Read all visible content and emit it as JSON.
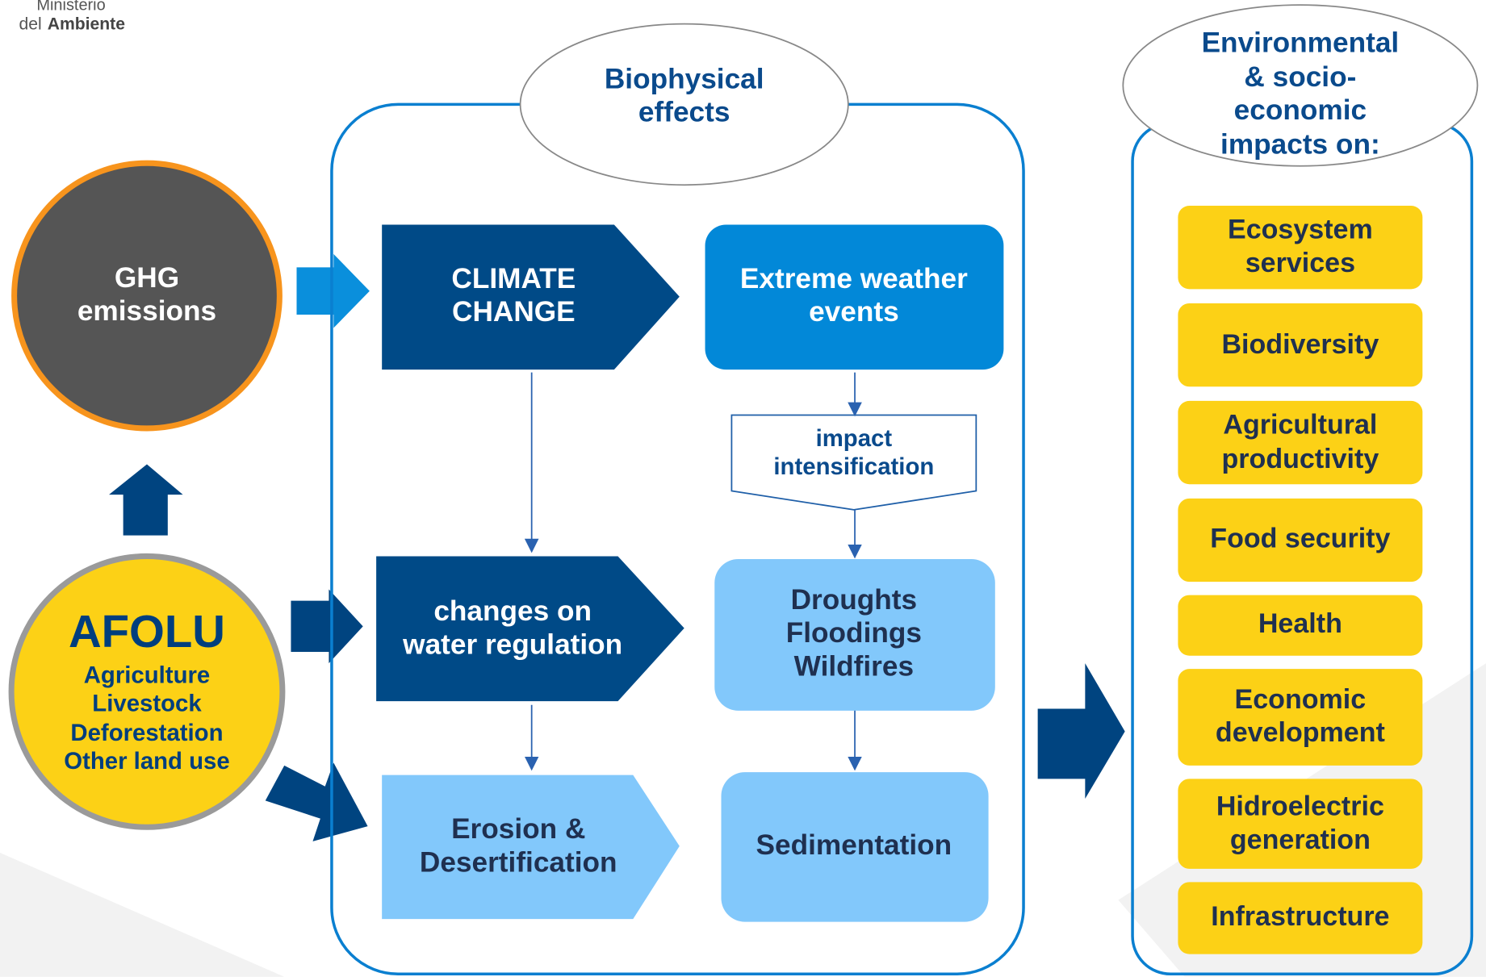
{
  "logo": {
    "line1": "Ministerio",
    "line2_prefix": "del",
    "line2_bold": "Ambiente"
  },
  "ghg": {
    "lines": [
      "GHG",
      "emissions"
    ]
  },
  "afolu": {
    "title": "AFOLU",
    "items": [
      "Agriculture",
      "Livestock",
      "Deforestation",
      "Other land use"
    ]
  },
  "biophysical": {
    "header": [
      "Biophysical",
      "effects"
    ],
    "climate_change": [
      "CLIMATE",
      "CHANGE"
    ],
    "extreme_weather": [
      "Extreme weather",
      "events"
    ],
    "impact_intensification": [
      "impact",
      "intensification"
    ],
    "water_regulation": [
      "changes on",
      "water regulation"
    ],
    "hazards": [
      "Droughts",
      "Floodings",
      "Wildfires"
    ],
    "erosion": [
      "Erosion &",
      "Desertification"
    ],
    "sedimentation": [
      "Sedimentation"
    ]
  },
  "impacts": {
    "header": [
      "Environmental",
      "& socio-",
      "economic",
      "impacts on:"
    ],
    "items": [
      [
        "Ecosystem",
        "services"
      ],
      [
        "Biodiversity"
      ],
      [
        "Agricultural",
        "productivity"
      ],
      [
        "Food security"
      ],
      [
        "Health"
      ],
      [
        "Economic",
        "development"
      ],
      [
        "Hidroelectric",
        "generation"
      ],
      [
        "Infrastructure"
      ]
    ]
  }
}
